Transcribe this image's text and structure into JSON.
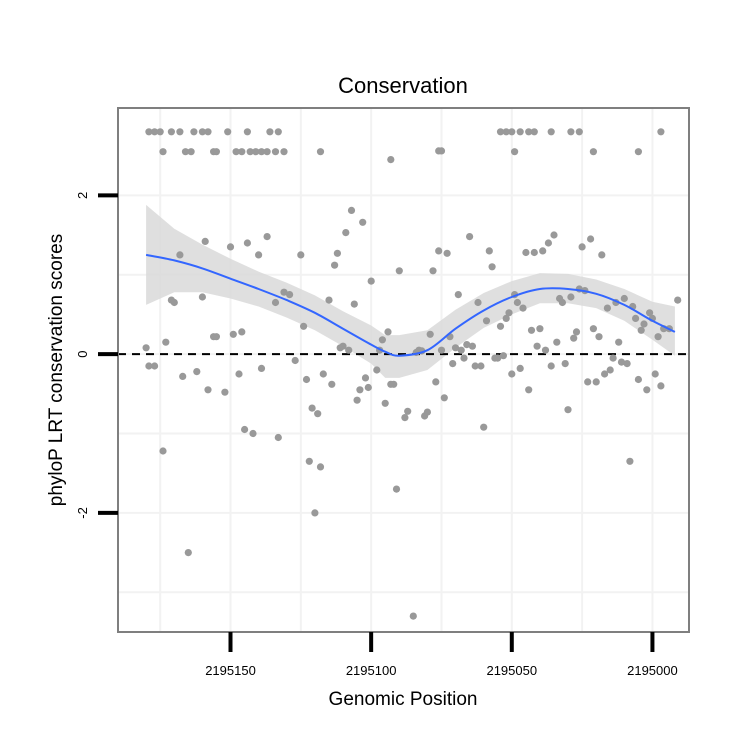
{
  "chart_data": {
    "type": "scatter",
    "title": "Conservation",
    "xlabel": "Genomic Position",
    "ylabel": "phyloP LRT conservation scores",
    "x_reversed": true,
    "xlim": [
      2195190,
      2194987
    ],
    "ylim": [
      -3.5,
      3.1
    ],
    "x_ticks": [
      2195150,
      2195100,
      2195050,
      2195000
    ],
    "x_tick_labels": [
      "2195150",
      "2195100",
      "2195050",
      "2195000"
    ],
    "y_ticks": [
      -2,
      0,
      2
    ],
    "y_tick_labels": [
      "-2",
      "0",
      "2"
    ],
    "grid": true,
    "reference_line": {
      "y": 0,
      "style": "dashed",
      "color": "#000000"
    },
    "colors": {
      "points": "#999999",
      "smooth": "#3366ff",
      "ribbon": "#d9d9d9",
      "panel_border": "#7f7f7f",
      "grid": "#f2f2f2"
    },
    "points": [
      [
        2195179,
        2.8
      ],
      [
        2195177,
        2.8
      ],
      [
        2195175,
        2.8
      ],
      [
        2195174,
        2.55
      ],
      [
        2195171,
        2.8
      ],
      [
        2195168,
        2.8
      ],
      [
        2195166,
        2.55
      ],
      [
        2195164,
        2.55
      ],
      [
        2195163,
        2.8
      ],
      [
        2195160,
        2.8
      ],
      [
        2195158,
        2.8
      ],
      [
        2195156,
        2.55
      ],
      [
        2195155,
        2.55
      ],
      [
        2195151,
        2.8
      ],
      [
        2195148,
        2.55
      ],
      [
        2195146,
        2.55
      ],
      [
        2195144,
        2.8
      ],
      [
        2195143,
        2.55
      ],
      [
        2195141,
        2.55
      ],
      [
        2195139,
        2.55
      ],
      [
        2195137,
        2.55
      ],
      [
        2195136,
        2.8
      ],
      [
        2195134,
        2.55
      ],
      [
        2195133,
        2.8
      ],
      [
        2195131,
        2.55
      ],
      [
        2195118,
        2.55
      ],
      [
        2195076,
        2.56
      ],
      [
        2195075,
        2.56
      ],
      [
        2195093,
        2.45
      ],
      [
        2195054,
        2.8
      ],
      [
        2195052,
        2.8
      ],
      [
        2195050,
        2.8
      ],
      [
        2195049,
        2.55
      ],
      [
        2195047,
        2.8
      ],
      [
        2195044,
        2.8
      ],
      [
        2195042,
        2.8
      ],
      [
        2195036,
        2.8
      ],
      [
        2195029,
        2.8
      ],
      [
        2195026,
        2.8
      ],
      [
        2195021,
        2.55
      ],
      [
        2195005,
        2.55
      ],
      [
        2194997,
        2.8
      ],
      [
        2195180,
        0.08
      ],
      [
        2195179,
        -0.15
      ],
      [
        2195177,
        -0.15
      ],
      [
        2195174,
        -1.22
      ],
      [
        2195173,
        0.15
      ],
      [
        2195171,
        0.68
      ],
      [
        2195170,
        0.65
      ],
      [
        2195168,
        1.25
      ],
      [
        2195167,
        -0.28
      ],
      [
        2195165,
        -2.5
      ],
      [
        2195162,
        -0.22
      ],
      [
        2195160,
        0.72
      ],
      [
        2195159,
        1.42
      ],
      [
        2195158,
        -0.45
      ],
      [
        2195156,
        0.22
      ],
      [
        2195155,
        0.22
      ],
      [
        2195152,
        -0.48
      ],
      [
        2195150,
        1.35
      ],
      [
        2195149,
        0.25
      ],
      [
        2195147,
        -0.25
      ],
      [
        2195146,
        0.28
      ],
      [
        2195145,
        -0.95
      ],
      [
        2195144,
        1.4
      ],
      [
        2195142,
        -1.0
      ],
      [
        2195140,
        1.25
      ],
      [
        2195139,
        -0.18
      ],
      [
        2195137,
        1.48
      ],
      [
        2195134,
        0.65
      ],
      [
        2195133,
        -1.05
      ],
      [
        2195131,
        0.78
      ],
      [
        2195129,
        0.75
      ],
      [
        2195127,
        -0.08
      ],
      [
        2195125,
        1.25
      ],
      [
        2195124,
        0.35
      ],
      [
        2195123,
        -0.32
      ],
      [
        2195122,
        -1.35
      ],
      [
        2195121,
        -0.68
      ],
      [
        2195120,
        -2.0
      ],
      [
        2195119,
        -0.75
      ],
      [
        2195118,
        -1.42
      ],
      [
        2195117,
        -0.25
      ],
      [
        2195115,
        0.68
      ],
      [
        2195114,
        -0.38
      ],
      [
        2195113,
        1.12
      ],
      [
        2195112,
        1.27
      ],
      [
        2195111,
        0.08
      ],
      [
        2195110,
        0.1
      ],
      [
        2195109,
        1.53
      ],
      [
        2195108,
        0.05
      ],
      [
        2195107,
        1.81
      ],
      [
        2195106,
        0.63
      ],
      [
        2195105,
        -0.58
      ],
      [
        2195104,
        -0.45
      ],
      [
        2195103,
        1.66
      ],
      [
        2195102,
        -0.3
      ],
      [
        2195101,
        -0.42
      ],
      [
        2195100,
        0.92
      ],
      [
        2195098,
        -0.2
      ],
      [
        2195097,
        0.05
      ],
      [
        2195096,
        0.18
      ],
      [
        2195095,
        -0.62
      ],
      [
        2195094,
        0.28
      ],
      [
        2195093,
        -0.38
      ],
      [
        2195092,
        -0.38
      ],
      [
        2195091,
        -1.7
      ],
      [
        2195090,
        1.05
      ],
      [
        2195088,
        -0.8
      ],
      [
        2195087,
        -0.72
      ],
      [
        2195085,
        -3.3
      ],
      [
        2195084,
        0.02
      ],
      [
        2195083,
        0.05
      ],
      [
        2195082,
        0.04
      ],
      [
        2195081,
        -0.78
      ],
      [
        2195080,
        -0.73
      ],
      [
        2195079,
        0.25
      ],
      [
        2195078,
        1.05
      ],
      [
        2195077,
        -0.35
      ],
      [
        2195076,
        1.3
      ],
      [
        2195075,
        0.05
      ],
      [
        2195074,
        -0.55
      ],
      [
        2195073,
        1.27
      ],
      [
        2195072,
        0.22
      ],
      [
        2195071,
        -0.12
      ],
      [
        2195070,
        0.08
      ],
      [
        2195069,
        0.75
      ],
      [
        2195068,
        0.05
      ],
      [
        2195067,
        -0.05
      ],
      [
        2195066,
        0.12
      ],
      [
        2195065,
        1.48
      ],
      [
        2195064,
        0.1
      ],
      [
        2195063,
        -0.15
      ],
      [
        2195062,
        0.65
      ],
      [
        2195061,
        -0.15
      ],
      [
        2195060,
        -0.92
      ],
      [
        2195059,
        0.42
      ],
      [
        2195058,
        1.3
      ],
      [
        2195057,
        1.1
      ],
      [
        2195056,
        -0.05
      ],
      [
        2195055,
        -0.05
      ],
      [
        2195054,
        0.35
      ],
      [
        2195053,
        -0.02
      ],
      [
        2195052,
        0.45
      ],
      [
        2195051,
        0.52
      ],
      [
        2195050,
        -0.25
      ],
      [
        2195049,
        0.75
      ],
      [
        2195048,
        0.65
      ],
      [
        2195047,
        -0.18
      ],
      [
        2195046,
        0.58
      ],
      [
        2195045,
        1.28
      ],
      [
        2195044,
        -0.45
      ],
      [
        2195043,
        0.3
      ],
      [
        2195042,
        1.28
      ],
      [
        2195041,
        0.1
      ],
      [
        2195040,
        0.32
      ],
      [
        2195039,
        1.3
      ],
      [
        2195038,
        0.05
      ],
      [
        2195037,
        1.4
      ],
      [
        2195036,
        -0.15
      ],
      [
        2195035,
        1.5
      ],
      [
        2195034,
        0.15
      ],
      [
        2195033,
        0.7
      ],
      [
        2195032,
        0.65
      ],
      [
        2195031,
        -0.12
      ],
      [
        2195030,
        -0.7
      ],
      [
        2195029,
        0.72
      ],
      [
        2195028,
        0.2
      ],
      [
        2195027,
        0.28
      ],
      [
        2195026,
        0.82
      ],
      [
        2195025,
        1.35
      ],
      [
        2195024,
        0.8
      ],
      [
        2195023,
        -0.35
      ],
      [
        2195022,
        1.45
      ],
      [
        2195021,
        0.32
      ],
      [
        2195020,
        -0.35
      ],
      [
        2195019,
        0.22
      ],
      [
        2195018,
        1.25
      ],
      [
        2195017,
        -0.25
      ],
      [
        2195016,
        0.58
      ],
      [
        2195015,
        -0.2
      ],
      [
        2195014,
        -0.05
      ],
      [
        2195013,
        0.65
      ],
      [
        2195012,
        0.15
      ],
      [
        2195011,
        -0.1
      ],
      [
        2195010,
        0.7
      ],
      [
        2195009,
        -0.12
      ],
      [
        2195008,
        -1.35
      ],
      [
        2195007,
        0.6
      ],
      [
        2195006,
        0.45
      ],
      [
        2195005,
        -0.32
      ],
      [
        2195004,
        0.3
      ],
      [
        2195003,
        0.38
      ],
      [
        2195002,
        -0.45
      ],
      [
        2195001,
        0.52
      ],
      [
        2195000,
        0.45
      ],
      [
        2194999,
        -0.25
      ],
      [
        2194998,
        0.22
      ],
      [
        2194997,
        -0.4
      ],
      [
        2194996,
        0.32
      ],
      [
        2194994,
        0.32
      ],
      [
        2194991,
        0.68
      ]
    ],
    "smooth": {
      "x": [
        2195180,
        2195170,
        2195160,
        2195150,
        2195140,
        2195130,
        2195120,
        2195110,
        2195100,
        2195095,
        2195090,
        2195080,
        2195070,
        2195060,
        2195050,
        2195040,
        2195030,
        2195020,
        2195010,
        2195000,
        2194992
      ],
      "y": [
        1.25,
        1.18,
        1.08,
        0.95,
        0.82,
        0.68,
        0.52,
        0.32,
        0.12,
        0.03,
        -0.02,
        0.05,
        0.32,
        0.55,
        0.72,
        0.82,
        0.82,
        0.76,
        0.62,
        0.42,
        0.28
      ],
      "lower": [
        0.62,
        0.78,
        0.78,
        0.7,
        0.6,
        0.46,
        0.3,
        0.1,
        -0.12,
        -0.3,
        -0.3,
        -0.2,
        0.08,
        0.33,
        0.5,
        0.64,
        0.64,
        0.58,
        0.42,
        0.18,
        -0.02
      ],
      "upper": [
        1.88,
        1.58,
        1.38,
        1.2,
        1.04,
        0.9,
        0.74,
        0.54,
        0.36,
        0.24,
        0.24,
        0.3,
        0.56,
        0.77,
        0.92,
        1.02,
        1.01,
        0.94,
        0.82,
        0.66,
        0.6
      ]
    }
  }
}
